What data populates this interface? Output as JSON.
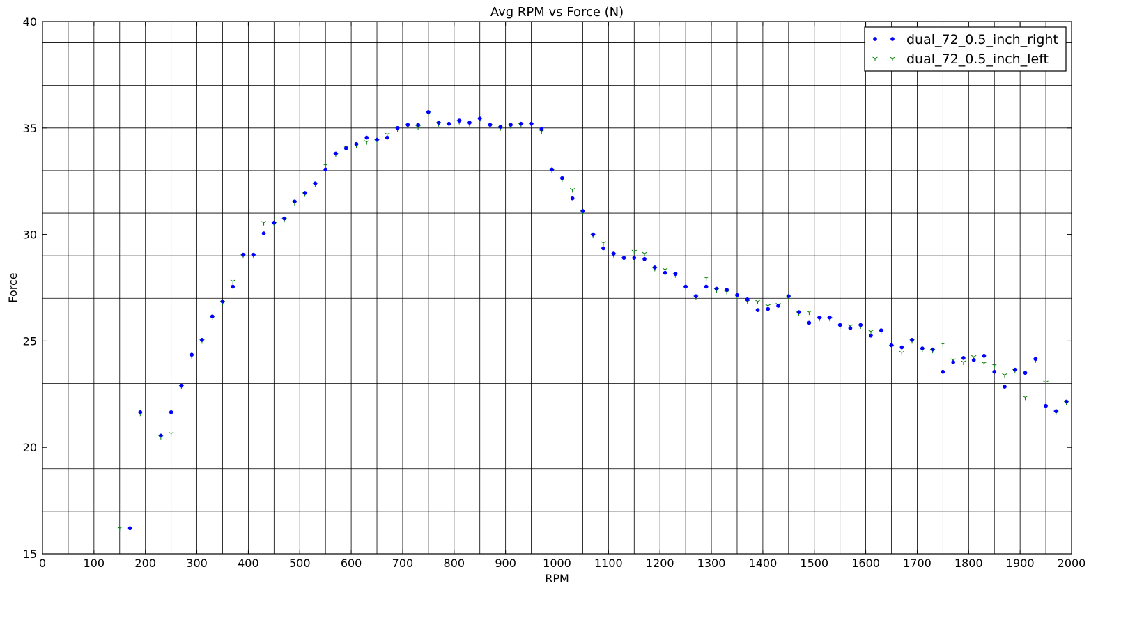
{
  "chart_data": {
    "type": "scatter",
    "title": "Avg RPM vs Force (N)",
    "xlabel": "RPM",
    "ylabel": "Force",
    "xlim": [
      0,
      2000
    ],
    "ylim": [
      15,
      40
    ],
    "x_ticks": [
      0,
      100,
      200,
      300,
      400,
      500,
      600,
      700,
      800,
      900,
      1000,
      1100,
      1200,
      1300,
      1400,
      1500,
      1600,
      1700,
      1800,
      1900,
      2000
    ],
    "y_ticks": [
      15,
      20,
      25,
      30,
      35,
      40
    ],
    "grid": true,
    "legend_position": "top-right",
    "series": [
      {
        "name": "dual_72_0.5_inch_right",
        "marker": "point",
        "color": "#0000ff",
        "points": [
          [
            170,
            16.2
          ],
          [
            190,
            21.65
          ],
          [
            230,
            20.55
          ],
          [
            250,
            21.65
          ],
          [
            270,
            22.9
          ],
          [
            290,
            24.35
          ],
          [
            310,
            25.05
          ],
          [
            330,
            26.15
          ],
          [
            350,
            26.85
          ],
          [
            370,
            27.55
          ],
          [
            390,
            29.05
          ],
          [
            410,
            29.05
          ],
          [
            430,
            30.05
          ],
          [
            450,
            30.55
          ],
          [
            470,
            30.75
          ],
          [
            490,
            31.55
          ],
          [
            510,
            31.95
          ],
          [
            530,
            32.4
          ],
          [
            550,
            33.05
          ],
          [
            570,
            33.8
          ],
          [
            590,
            34.05
          ],
          [
            610,
            34.25
          ],
          [
            630,
            34.55
          ],
          [
            650,
            34.45
          ],
          [
            670,
            34.55
          ],
          [
            690,
            35.0
          ],
          [
            710,
            35.15
          ],
          [
            730,
            35.15
          ],
          [
            750,
            35.75
          ],
          [
            770,
            35.25
          ],
          [
            790,
            35.2
          ],
          [
            810,
            35.35
          ],
          [
            830,
            35.25
          ],
          [
            850,
            35.45
          ],
          [
            870,
            35.15
          ],
          [
            890,
            35.05
          ],
          [
            910,
            35.15
          ],
          [
            930,
            35.2
          ],
          [
            950,
            35.2
          ],
          [
            970,
            34.95
          ],
          [
            990,
            33.05
          ],
          [
            1010,
            32.65
          ],
          [
            1030,
            31.7
          ],
          [
            1050,
            31.1
          ],
          [
            1070,
            30.0
          ],
          [
            1090,
            29.35
          ],
          [
            1110,
            29.1
          ],
          [
            1130,
            28.9
          ],
          [
            1150,
            28.9
          ],
          [
            1170,
            28.85
          ],
          [
            1190,
            28.45
          ],
          [
            1210,
            28.2
          ],
          [
            1230,
            28.15
          ],
          [
            1250,
            27.55
          ],
          [
            1270,
            27.1
          ],
          [
            1290,
            27.55
          ],
          [
            1310,
            27.45
          ],
          [
            1330,
            27.4
          ],
          [
            1350,
            27.15
          ],
          [
            1370,
            26.95
          ],
          [
            1390,
            26.45
          ],
          [
            1410,
            26.5
          ],
          [
            1430,
            26.65
          ],
          [
            1450,
            27.1
          ],
          [
            1470,
            26.35
          ],
          [
            1490,
            25.85
          ],
          [
            1510,
            26.1
          ],
          [
            1530,
            26.1
          ],
          [
            1550,
            25.75
          ],
          [
            1570,
            25.6
          ],
          [
            1590,
            25.75
          ],
          [
            1610,
            25.25
          ],
          [
            1630,
            25.5
          ],
          [
            1650,
            24.8
          ],
          [
            1670,
            24.7
          ],
          [
            1690,
            25.05
          ],
          [
            1710,
            24.65
          ],
          [
            1730,
            24.6
          ],
          [
            1750,
            23.55
          ],
          [
            1770,
            24.0
          ],
          [
            1790,
            24.2
          ],
          [
            1810,
            24.1
          ],
          [
            1830,
            24.3
          ],
          [
            1850,
            23.55
          ],
          [
            1870,
            22.85
          ],
          [
            1890,
            23.65
          ],
          [
            1910,
            23.5
          ],
          [
            1930,
            24.15
          ],
          [
            1950,
            21.95
          ],
          [
            1970,
            21.7
          ],
          [
            1990,
            22.15
          ]
        ]
      },
      {
        "name": "dual_72_0.5_inch_left",
        "marker": "tri_down",
        "color": "#008000",
        "points": [
          [
            150,
            16.2
          ],
          [
            190,
            21.6
          ],
          [
            230,
            20.5
          ],
          [
            250,
            20.65
          ],
          [
            270,
            22.85
          ],
          [
            290,
            24.3
          ],
          [
            310,
            25.0
          ],
          [
            330,
            26.1
          ],
          [
            350,
            26.8
          ],
          [
            370,
            27.8
          ],
          [
            390,
            29.0
          ],
          [
            410,
            29.0
          ],
          [
            430,
            30.55
          ],
          [
            450,
            30.5
          ],
          [
            470,
            30.7
          ],
          [
            490,
            31.5
          ],
          [
            510,
            31.9
          ],
          [
            530,
            32.35
          ],
          [
            550,
            33.25
          ],
          [
            570,
            33.75
          ],
          [
            590,
            34.1
          ],
          [
            610,
            34.2
          ],
          [
            630,
            34.35
          ],
          [
            650,
            34.4
          ],
          [
            670,
            34.7
          ],
          [
            690,
            34.95
          ],
          [
            710,
            35.1
          ],
          [
            730,
            35.05
          ],
          [
            750,
            35.7
          ],
          [
            770,
            35.2
          ],
          [
            790,
            35.15
          ],
          [
            810,
            35.3
          ],
          [
            830,
            35.2
          ],
          [
            850,
            35.4
          ],
          [
            870,
            35.1
          ],
          [
            890,
            35.0
          ],
          [
            910,
            35.1
          ],
          [
            930,
            35.15
          ],
          [
            950,
            35.15
          ],
          [
            970,
            34.85
          ],
          [
            990,
            33.0
          ],
          [
            1010,
            32.6
          ],
          [
            1030,
            32.1
          ],
          [
            1050,
            31.05
          ],
          [
            1070,
            29.95
          ],
          [
            1090,
            29.6
          ],
          [
            1110,
            29.05
          ],
          [
            1130,
            28.85
          ],
          [
            1150,
            29.2
          ],
          [
            1170,
            29.1
          ],
          [
            1190,
            28.4
          ],
          [
            1210,
            28.35
          ],
          [
            1230,
            28.1
          ],
          [
            1250,
            27.5
          ],
          [
            1270,
            27.05
          ],
          [
            1290,
            27.95
          ],
          [
            1310,
            27.4
          ],
          [
            1330,
            27.3
          ],
          [
            1350,
            27.1
          ],
          [
            1370,
            26.85
          ],
          [
            1390,
            26.85
          ],
          [
            1410,
            26.65
          ],
          [
            1430,
            26.7
          ],
          [
            1450,
            27.05
          ],
          [
            1470,
            26.3
          ],
          [
            1490,
            26.35
          ],
          [
            1510,
            26.05
          ],
          [
            1530,
            26.05
          ],
          [
            1550,
            25.7
          ],
          [
            1570,
            25.7
          ],
          [
            1590,
            25.7
          ],
          [
            1610,
            25.45
          ],
          [
            1630,
            25.45
          ],
          [
            1650,
            24.75
          ],
          [
            1670,
            24.45
          ],
          [
            1690,
            25.0
          ],
          [
            1710,
            24.6
          ],
          [
            1730,
            24.55
          ],
          [
            1750,
            24.85
          ],
          [
            1770,
            24.1
          ],
          [
            1790,
            24.0
          ],
          [
            1810,
            24.25
          ],
          [
            1830,
            23.95
          ],
          [
            1850,
            23.85
          ],
          [
            1870,
            23.4
          ],
          [
            1890,
            23.6
          ],
          [
            1910,
            22.35
          ],
          [
            1930,
            24.1
          ],
          [
            1950,
            23.05
          ],
          [
            1970,
            21.65
          ],
          [
            1990,
            22.1
          ]
        ]
      }
    ]
  }
}
